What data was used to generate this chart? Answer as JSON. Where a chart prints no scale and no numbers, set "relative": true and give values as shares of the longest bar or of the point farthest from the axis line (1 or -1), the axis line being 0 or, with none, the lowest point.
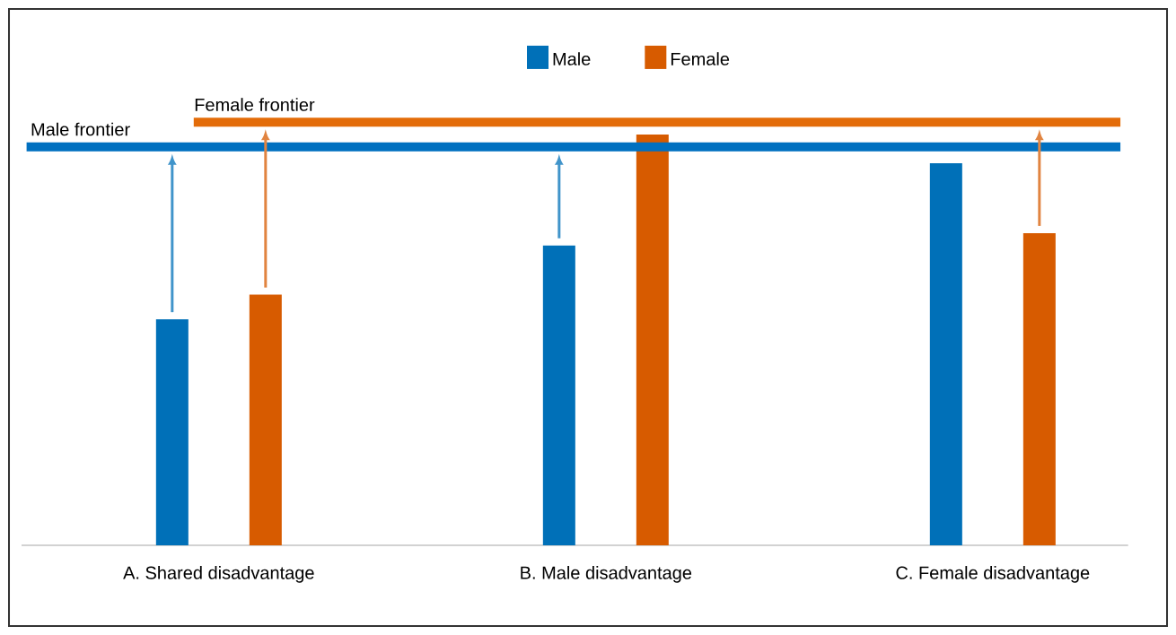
{
  "chart_data": {
    "type": "bar",
    "relative": true,
    "legend": "top",
    "categories": [
      "A. Shared disadvantage",
      "B. Male disadvantage",
      "C. Female disadvantage"
    ],
    "series": [
      {
        "name": "Male",
        "color": "#0070b8",
        "values": [
          0.55,
          0.73,
          0.93
        ]
      },
      {
        "name": "Female",
        "color": "#d75b00",
        "values": [
          0.61,
          1.0,
          0.76
        ]
      }
    ],
    "ref_lines": [
      {
        "axis": "y",
        "value": 0.97,
        "label": "Male frontier",
        "color": "#0070c0"
      },
      {
        "axis": "y",
        "value": 1.03,
        "label": "Female frontier",
        "color": "#e36c09"
      }
    ]
  }
}
